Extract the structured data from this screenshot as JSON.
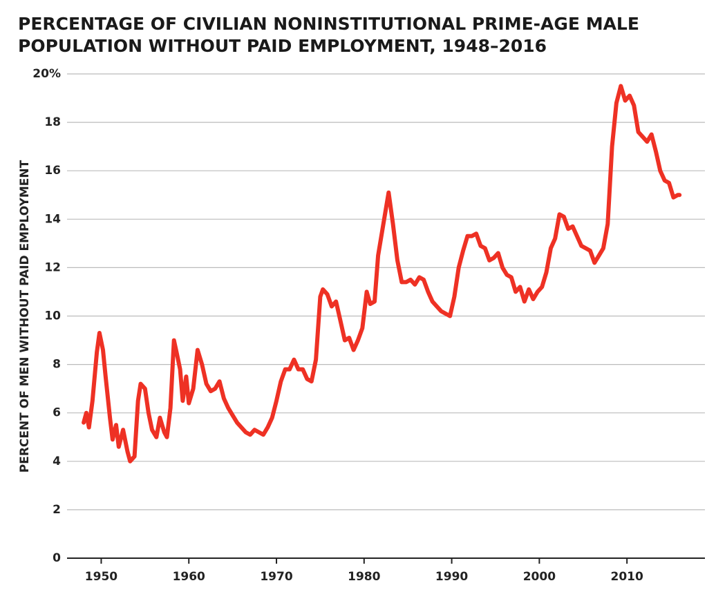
{
  "chart_data": {
    "type": "line",
    "title": [
      "PERCENTAGE OF CIVILIAN NONINSTITUTIONAL PRIME-AGE MALE",
      "POPULATION WITHOUT PAID EMPLOYMENT, 1948–2016"
    ],
    "ylabel": "PERCENT OF MEN WITHOUT PAID EMPLOYMENT",
    "color": "#ee3124",
    "grid": true,
    "xlim": [
      1946.1,
      2018.9
    ],
    "ylim": [
      0,
      20
    ],
    "xticks": [
      1950,
      1960,
      1970,
      1980,
      1990,
      2000,
      2010
    ],
    "yticks": [
      0,
      2,
      4,
      6,
      8,
      10,
      12,
      14,
      16,
      18,
      {
        "value": 20,
        "label": "20%"
      }
    ],
    "x": [
      1948,
      1948.3,
      1948.6,
      1949,
      1949.5,
      1949.8,
      1950.2,
      1950.5,
      1951,
      1951.3,
      1951.7,
      1952,
      1952.5,
      1953,
      1953.3,
      1953.8,
      1954.2,
      1954.5,
      1955,
      1955.4,
      1955.8,
      1956.3,
      1956.7,
      1957.2,
      1957.5,
      1957.9,
      1958.3,
      1958.6,
      1959,
      1959.3,
      1959.7,
      1960,
      1960.5,
      1961,
      1961.5,
      1962,
      1962.5,
      1963,
      1963.5,
      1964,
      1964.5,
      1965,
      1965.5,
      1966,
      1966.5,
      1967,
      1967.5,
      1968,
      1968.5,
      1969,
      1969.5,
      1970,
      1970.5,
      1971,
      1971.5,
      1972,
      1972.5,
      1973,
      1973.5,
      1974,
      1974.5,
      1975,
      1975.3,
      1975.8,
      1976.3,
      1976.8,
      1977.3,
      1977.8,
      1978.3,
      1978.8,
      1979.3,
      1979.8,
      1980.3,
      1980.7,
      1981.2,
      1981.6,
      1982.2,
      1982.8,
      1983.3,
      1983.8,
      1984.3,
      1984.8,
      1985.3,
      1985.8,
      1986.3,
      1986.8,
      1987.3,
      1987.8,
      1988.3,
      1988.8,
      1989.3,
      1989.8,
      1990.3,
      1990.8,
      1991.3,
      1991.8,
      1992.3,
      1992.8,
      1993.3,
      1993.8,
      1994.3,
      1994.8,
      1995.3,
      1995.8,
      1996.3,
      1996.8,
      1997.3,
      1997.8,
      1998.3,
      1998.8,
      1999.3,
      1999.8,
      2000.3,
      2000.8,
      2001.3,
      2001.8,
      2002.3,
      2002.8,
      2003.3,
      2003.8,
      2004.3,
      2004.8,
      2005.3,
      2005.8,
      2006.3,
      2006.8,
      2007.3,
      2007.8,
      2008.3,
      2008.8,
      2009.3,
      2009.8,
      2010.3,
      2010.8,
      2011.3,
      2011.8,
      2012.3,
      2012.8,
      2013.3,
      2013.8,
      2014.3,
      2014.8,
      2015.3,
      2015.8,
      2016
    ],
    "values": [
      5.6,
      6.0,
      5.4,
      6.5,
      8.5,
      9.3,
      8.6,
      7.5,
      5.8,
      4.9,
      5.5,
      4.6,
      5.3,
      4.4,
      4.0,
      4.2,
      6.5,
      7.2,
      7.0,
      6.0,
      5.3,
      5.0,
      5.8,
      5.2,
      5.0,
      6.2,
      9.0,
      8.5,
      7.8,
      6.5,
      7.5,
      6.4,
      7.0,
      8.6,
      8.0,
      7.2,
      6.9,
      7.0,
      7.3,
      6.6,
      6.2,
      5.9,
      5.6,
      5.4,
      5.2,
      5.1,
      5.3,
      5.2,
      5.1,
      5.4,
      5.8,
      6.5,
      7.3,
      7.8,
      7.8,
      8.2,
      7.8,
      7.8,
      7.4,
      7.3,
      8.2,
      10.8,
      11.1,
      10.9,
      10.4,
      10.6,
      9.8,
      9.0,
      9.1,
      8.6,
      9.0,
      9.5,
      11.0,
      10.5,
      10.6,
      12.5,
      13.8,
      15.1,
      13.8,
      12.3,
      11.4,
      11.4,
      11.5,
      11.3,
      11.6,
      11.5,
      11.0,
      10.6,
      10.4,
      10.2,
      10.1,
      10.0,
      10.8,
      12.0,
      12.7,
      13.3,
      13.3,
      13.4,
      12.9,
      12.8,
      12.3,
      12.4,
      12.6,
      12.0,
      11.7,
      11.6,
      11.0,
      11.2,
      10.6,
      11.1,
      10.7,
      11.0,
      11.2,
      11.8,
      12.8,
      13.2,
      14.2,
      14.1,
      13.6,
      13.7,
      13.3,
      12.9,
      12.8,
      12.7,
      12.2,
      12.5,
      12.8,
      13.8,
      17.0,
      18.8,
      19.5,
      18.9,
      19.1,
      18.7,
      17.6,
      17.4,
      17.2,
      17.5,
      16.8,
      16.0,
      15.6,
      15.5,
      14.9,
      15.0,
      15.0
    ]
  }
}
